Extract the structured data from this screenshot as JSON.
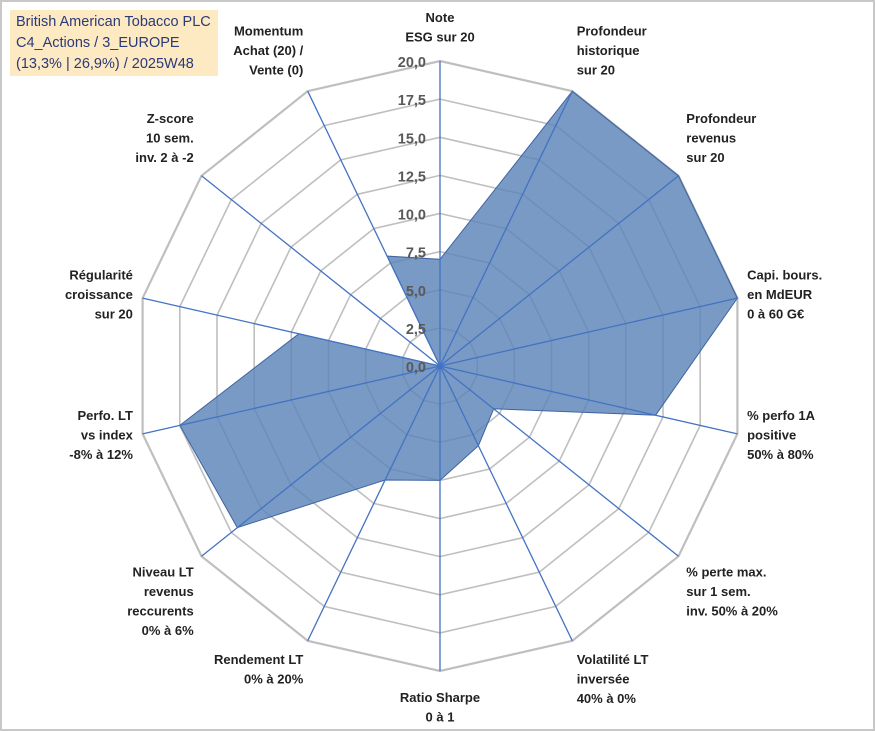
{
  "title_lines": [
    "British American Tobacco PLC",
    "C4_Actions / 3_EUROPE",
    "(13,3% | 26,9%) / 2025W48"
  ],
  "chart_data": {
    "type": "radar",
    "title": "British American Tobacco PLC",
    "rmin": 0,
    "rmax": 20,
    "ticks": [
      "0,0",
      "2,5",
      "5,0",
      "7,5",
      "10,0",
      "12,5",
      "15,0",
      "17,5",
      "20,0"
    ],
    "tick_values": [
      0,
      2.5,
      5,
      7.5,
      10,
      12.5,
      15,
      17.5,
      20
    ],
    "categories": [
      [
        "Note",
        "ESG sur 20"
      ],
      [
        "Profondeur",
        "historique",
        "sur 20"
      ],
      [
        "Profondeur",
        "revenus",
        "sur 20"
      ],
      [
        "Capi. bours.",
        "en MdEUR",
        "0 à 60 G€"
      ],
      [
        "% perfo 1A",
        "positive",
        "50% à 80%"
      ],
      [
        "% perte max.",
        "sur 1 sem.",
        "inv. 50% à 20%"
      ],
      [
        "Volatilité LT",
        "inversée",
        "40% à 0%"
      ],
      [
        "Ratio Sharpe",
        "0 à 1"
      ],
      [
        "Rendement LT",
        "0% à 20%"
      ],
      [
        "Niveau LT",
        "revenus",
        "reccurents",
        "0% à 6%"
      ],
      [
        "Perfo. LT",
        "vs index",
        "-8% à 12%"
      ],
      [
        "Régularité",
        "croissance",
        "sur 20"
      ],
      [
        "Z-score",
        "10 sem.",
        "inv. 2 à -2"
      ],
      [
        "Momentum",
        "Achat (20) /",
        "Vente (0)"
      ]
    ],
    "series": [
      {
        "name": "British American Tobacco PLC",
        "color": "#5b84b7",
        "values": [
          7.0,
          20.0,
          20.0,
          20.0,
          14.5,
          4.5,
          5.8,
          7.5,
          8.3,
          17.0,
          17.5,
          9.5,
          0.0,
          8.0
        ]
      }
    ],
    "colors": {
      "grid": "#bfbfbf",
      "spoke": "#4472c4",
      "fill": "#5b84b7",
      "stroke": "#3e64a0"
    }
  }
}
